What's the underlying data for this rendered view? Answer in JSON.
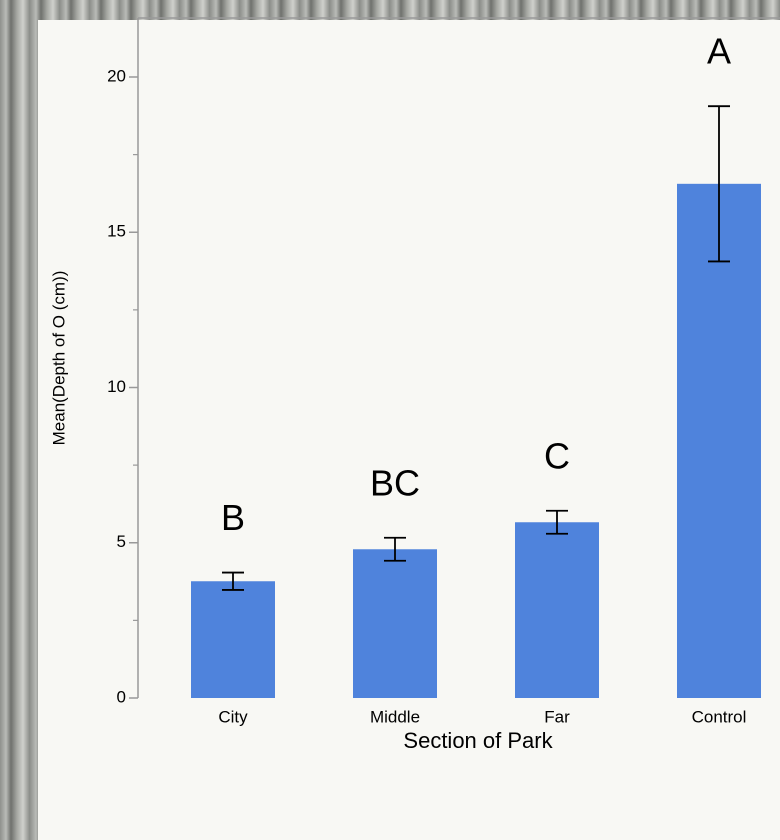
{
  "chart_data": {
    "type": "bar",
    "x_label": "Section of Park",
    "y_label": "Mean(Depth of O (cm))",
    "categories": [
      "City",
      "Middle",
      "Far",
      "Control"
    ],
    "values": [
      3.76,
      4.79,
      5.66,
      16.56
    ],
    "errors": [
      0.28,
      0.37,
      0.37,
      2.5
    ],
    "group_letters": [
      "B",
      "BC",
      "C",
      "A"
    ],
    "color": "#4f83dc",
    "ylim": [
      0,
      21.9
    ],
    "yticks": [
      0,
      5,
      10,
      15,
      20
    ],
    "minor_yticks": [
      2.5,
      7.5,
      12.5,
      17.5
    ]
  }
}
